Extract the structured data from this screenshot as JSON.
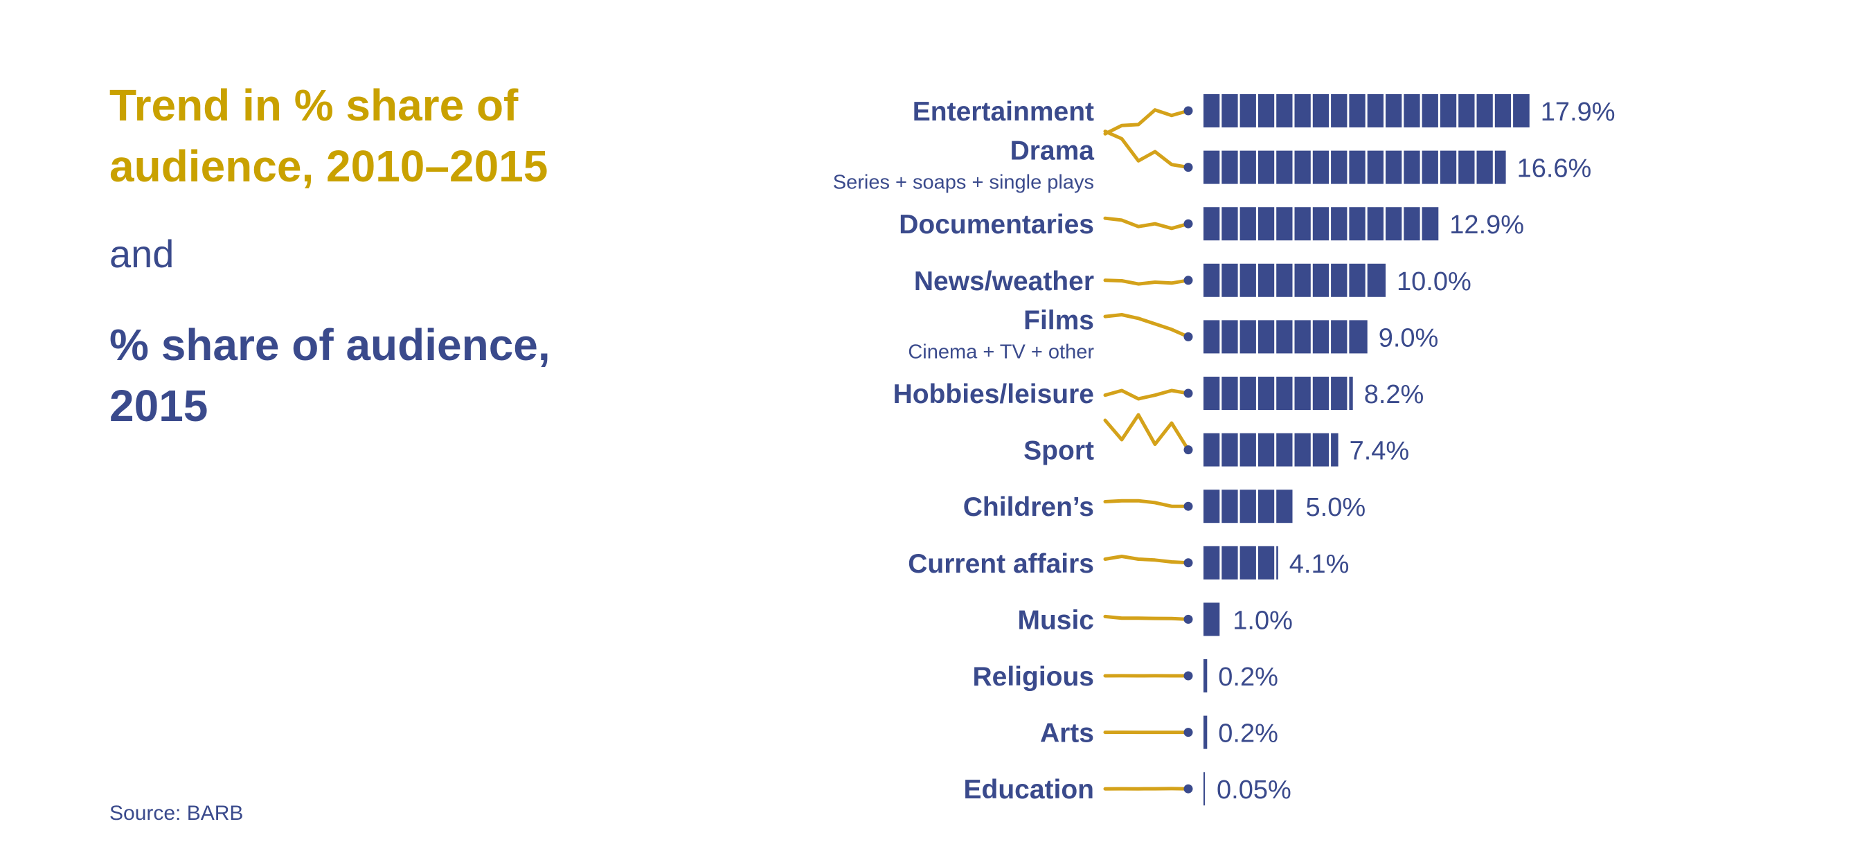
{
  "heading": {
    "trend_title_line1": "Trend in % share of",
    "trend_title_line2": "audience, 2010–2015",
    "connector": "and",
    "share_title_line1": "% share of audience,",
    "share_title_line2": "2015"
  },
  "source": "Source: BARB",
  "colors": {
    "accent_gold": "#D4A21A",
    "title_gold": "#C9A100",
    "navy": "#3A4A8C",
    "background": "#FFFFFF"
  },
  "chart_data": {
    "type": "bar",
    "value_format": "percent",
    "categories": [
      "Entertainment",
      "Drama",
      "Documentaries",
      "News/weather",
      "Films",
      "Hobbies/leisure",
      "Sport",
      "Children’s",
      "Current affairs",
      "Music",
      "Religious",
      "Arts",
      "Education"
    ],
    "subtitles": [
      "",
      "Series + soaps + single plays",
      "",
      "",
      "Cinema + TV + other",
      "",
      "",
      "",
      "",
      "",
      "",
      "",
      ""
    ],
    "values": [
      17.9,
      16.6,
      12.9,
      10.0,
      9.0,
      8.2,
      7.4,
      5.0,
      4.1,
      1.0,
      0.2,
      0.2,
      0.05
    ],
    "value_labels": [
      "17.9%",
      "16.6%",
      "12.9%",
      "10.0%",
      "9.0%",
      "8.2%",
      "7.4%",
      "5.0%",
      "4.1%",
      "1.0%",
      "0.2%",
      "0.2%",
      "0.05%"
    ],
    "xlim": [
      0,
      18
    ],
    "bar_segment_unit": 1,
    "trend": {
      "type": "line",
      "x": [
        2010,
        2011,
        2012,
        2013,
        2014,
        2015
      ],
      "series": [
        {
          "values": [
            15.4,
            16.3,
            16.4,
            18.0,
            17.4,
            17.9
          ]
        },
        {
          "values": [
            20.5,
            19.7,
            17.3,
            18.3,
            16.9,
            16.6
          ]
        },
        {
          "values": [
            13.5,
            13.3,
            12.6,
            12.9,
            12.4,
            12.9
          ]
        },
        {
          "values": [
            10.0,
            9.95,
            9.6,
            9.8,
            9.7,
            10.0
          ]
        },
        {
          "values": [
            11.2,
            11.4,
            11.0,
            10.4,
            9.8,
            9.0
          ]
        },
        {
          "values": [
            8.0,
            8.5,
            7.6,
            8.0,
            8.5,
            8.2
          ]
        },
        {
          "values": [
            10.6,
            8.5,
            11.2,
            8.0,
            10.3,
            7.4
          ]
        },
        {
          "values": [
            5.5,
            5.6,
            5.6,
            5.4,
            5.0,
            5.0
          ]
        },
        {
          "values": [
            4.5,
            4.8,
            4.5,
            4.4,
            4.2,
            4.1
          ]
        },
        {
          "values": [
            1.3,
            1.12,
            1.12,
            1.1,
            1.09,
            1.0
          ]
        },
        {
          "values": [
            0.2,
            0.21,
            0.2,
            0.21,
            0.2,
            0.2
          ]
        },
        {
          "values": [
            0.2,
            0.21,
            0.2,
            0.2,
            0.2,
            0.2
          ]
        },
        {
          "values": [
            0.05,
            0.06,
            0.05,
            0.06,
            0.07,
            0.05
          ]
        }
      ]
    }
  }
}
